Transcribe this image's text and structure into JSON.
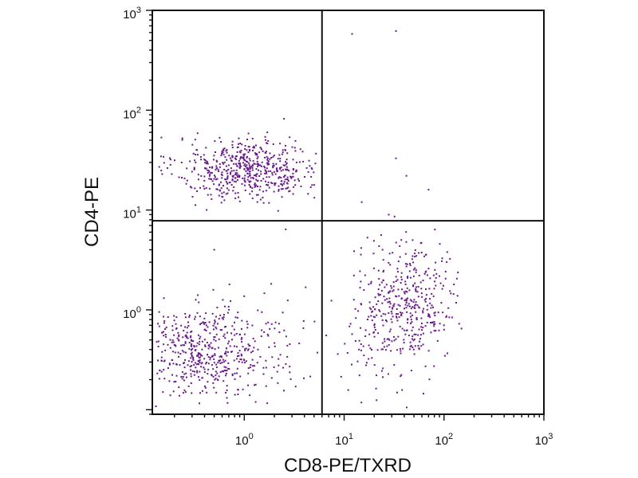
{
  "chart_data": {
    "type": "scatter",
    "title": "",
    "xlabel": "CD8-PE/TXRD",
    "ylabel": "CD4-PE",
    "x_scale": "log",
    "y_scale": "log",
    "xlim": [
      0.12,
      1000
    ],
    "ylim": [
      0.09,
      1000
    ],
    "x_ticks": [
      {
        "base": "10",
        "exp": "0",
        "value": 1
      },
      {
        "base": "10",
        "exp": "1",
        "value": 10
      },
      {
        "base": "10",
        "exp": "2",
        "value": 100
      },
      {
        "base": "10",
        "exp": "3",
        "value": 1000
      }
    ],
    "y_ticks": [
      {
        "base": "10",
        "exp": "0",
        "value": 1
      },
      {
        "base": "10",
        "exp": "1",
        "value": 10
      },
      {
        "base": "10",
        "exp": "2",
        "value": 100
      },
      {
        "base": "10",
        "exp": "3",
        "value": 1000
      }
    ],
    "quadrant_gates": {
      "x": 6,
      "y": 7.8
    },
    "grid": false,
    "point_color": "#6a1b8a",
    "populations": [
      {
        "center": [
          1.1,
          26
        ],
        "spread": [
          0.36,
          0.16
        ],
        "count": 560,
        "xrange": [
          0.14,
          5.5
        ],
        "yrange": [
          8,
          60
        ]
      },
      {
        "center": [
          0.38,
          0.38
        ],
        "spread": [
          0.3,
          0.22
        ],
        "count": 420,
        "xrange": [
          0.13,
          5.5
        ],
        "yrange": [
          0.1,
          2.2
        ]
      },
      {
        "center": [
          1.5,
          0.35
        ],
        "spread": [
          0.4,
          0.32
        ],
        "count": 90,
        "xrange": [
          0.13,
          5.5
        ],
        "yrange": [
          0.1,
          3
        ]
      },
      {
        "center": [
          45,
          1.2
        ],
        "spread": [
          0.25,
          0.3
        ],
        "count": 380,
        "xrange": [
          6.5,
          160
        ],
        "yrange": [
          0.1,
          7.2
        ]
      },
      {
        "center": [
          18,
          0.5
        ],
        "spread": [
          0.3,
          0.35
        ],
        "count": 70,
        "xrange": [
          6.5,
          160
        ],
        "yrange": [
          0.1,
          3
        ]
      }
    ],
    "outliers": [
      [
        12,
        580
      ],
      [
        33,
        620
      ],
      [
        33,
        33
      ],
      [
        42,
        22
      ],
      [
        70,
        16
      ],
      [
        15,
        12
      ],
      [
        28,
        9
      ],
      [
        32,
        8.6
      ],
      [
        2.5,
        82
      ],
      [
        1.7,
        60
      ],
      [
        0.5,
        4
      ],
      [
        2.6,
        6.4
      ]
    ]
  }
}
